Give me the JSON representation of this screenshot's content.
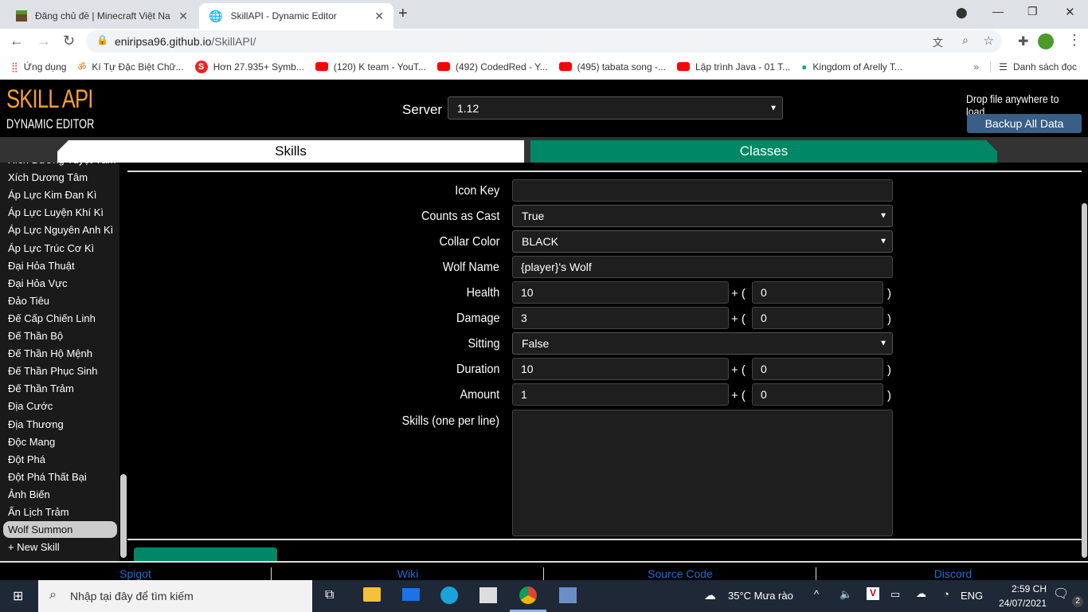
{
  "browser": {
    "tabs": [
      {
        "title": "Đăng chủ đề | Minecraft Việt Nam",
        "icon": "minecraft-block-icon"
      },
      {
        "title": "SkillAPI - Dynamic Editor",
        "icon": "globe-icon"
      }
    ],
    "url_host": "eniripsa96.github.io",
    "url_path": "/SkillAPI/",
    "bookmarks": [
      "Ứng dụng",
      "Kí Tự Đặc Biệt Chữ...",
      "Hơn 27.935+ Symb...",
      "(120) K team - YouT...",
      "(492) CodedRed - Y...",
      "(495) tabata song -...",
      "Lập trình Java - 01 T...",
      "Kingdom of Arelly T..."
    ],
    "reading_list": "Danh sách đọc"
  },
  "app": {
    "logo_title": "SKILL API",
    "logo_subtitle": "DYNAMIC EDITOR",
    "server_label": "Server",
    "server_value": "1.12",
    "drop_text": "Drop file anywhere to load",
    "backup_label": "Backup All Data",
    "tabs": {
      "skills": "Skills",
      "classes": "Classes"
    },
    "colors": {
      "accent": "#008866",
      "logo": "#f5a033",
      "backup": "#3a5f86",
      "link": "#1a6fd6"
    }
  },
  "sidebar": {
    "items": [
      "Xích Dương Tuyệt Tâm",
      "Xích Dương Tâm",
      "Áp Lực Kim Đan Kì",
      "Áp Lực Luyện Khí Kì",
      "Áp Lực Nguyên Anh Kì",
      "Áp Lực Trúc Cơ Kì",
      "Đại Hỏa Thuật",
      "Đại Hỏa Vực",
      "Đảo Tiêu",
      "Đế Cấp Chiến Linh",
      "Đế Thần Bộ",
      "Đế Thần Hộ Mệnh",
      "Đế Thần Phục Sinh",
      "Đế Thần Trảm",
      "Địa Cước",
      "Địa Thương",
      "Độc Mang",
      "Đột Phá",
      "Đột Phá Thất Bại",
      "Ảnh Biến",
      "Ẩn Lịch Trảm",
      "Wolf Summon",
      "+ New Skill"
    ],
    "selected": "Wolf Summon"
  },
  "form": {
    "icon_key": {
      "label": "Icon Key",
      "value": ""
    },
    "counts_as_cast": {
      "label": "Counts as Cast",
      "value": "True"
    },
    "collar_color": {
      "label": "Collar Color",
      "value": "BLACK"
    },
    "wolf_name": {
      "label": "Wolf Name",
      "value": "{player}'s Wolf"
    },
    "health": {
      "label": "Health",
      "base": "10",
      "scale": "0"
    },
    "damage": {
      "label": "Damage",
      "base": "3",
      "scale": "0"
    },
    "sitting": {
      "label": "Sitting",
      "value": "False"
    },
    "duration": {
      "label": "Duration",
      "base": "10",
      "scale": "0"
    },
    "amount": {
      "label": "Amount",
      "base": "1",
      "scale": "0"
    },
    "skills": {
      "label": "Skills (one per line)",
      "value": ""
    },
    "plus_text": "+ (",
    "close_text": ")"
  },
  "footer": {
    "links": [
      "Spigot",
      "Wiki",
      "Source Code",
      "Discord"
    ]
  },
  "taskbar": {
    "search_placeholder": "Nhập tại đây để tìm kiếm",
    "weather": "35°C  Mưa rào",
    "lang": "ENG",
    "time": "2:59 CH",
    "date": "24/07/2021",
    "notifications": "2"
  }
}
